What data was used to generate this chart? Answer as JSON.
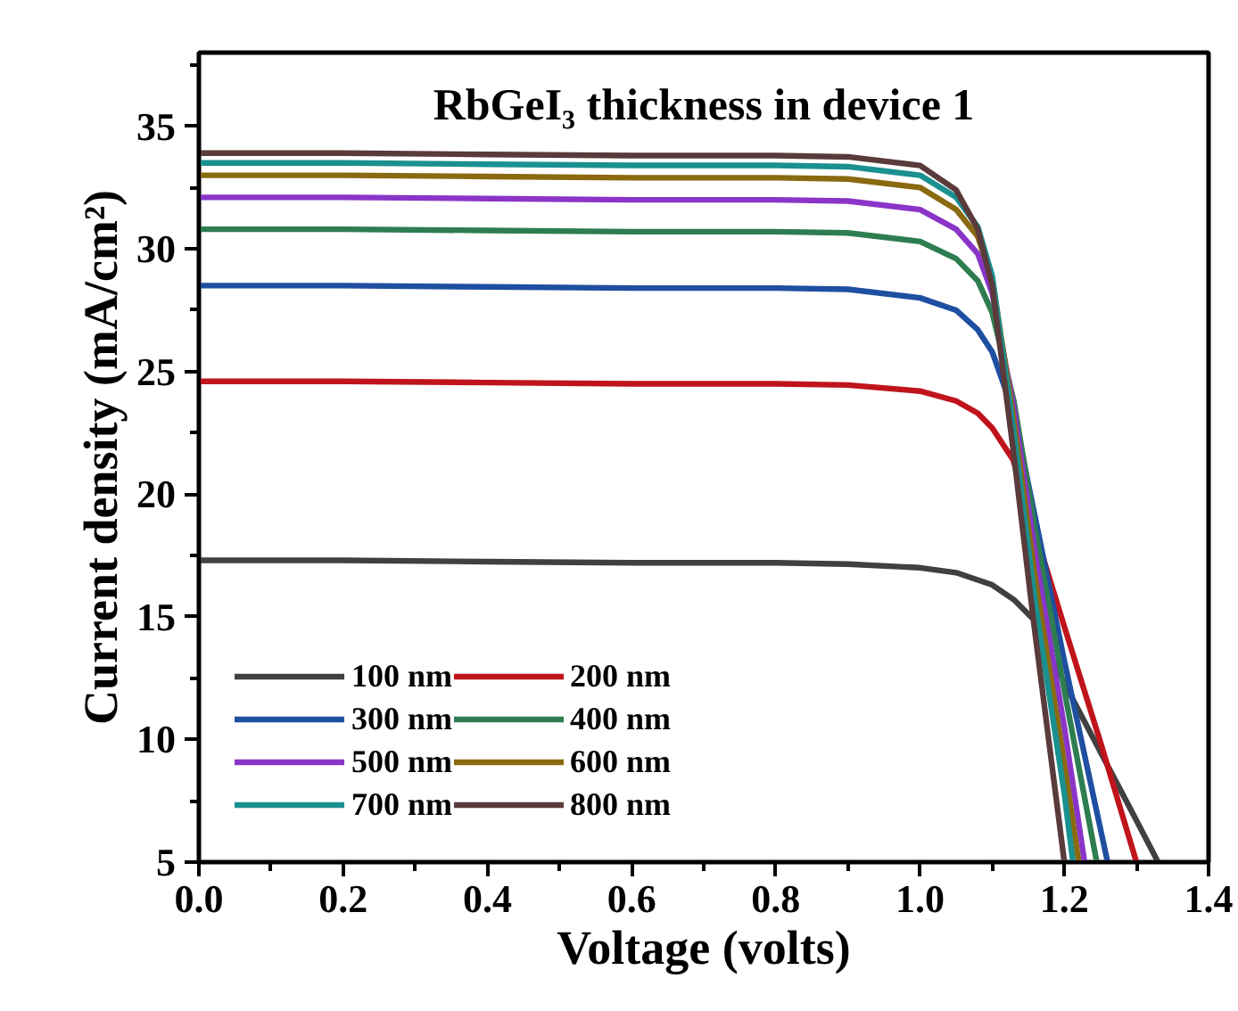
{
  "chart_data": {
    "type": "line",
    "title": "RbGeI₃ thickness in device 1",
    "xlabel": "Voltage (volts)",
    "ylabel": "Current density (mA/cm²)",
    "xlim": [
      0,
      1.4
    ],
    "ylim": [
      5,
      38
    ],
    "xticks": [
      {
        "value": 0,
        "label": "0.0"
      },
      {
        "value": 0.1,
        "label": null
      },
      {
        "value": 0.2,
        "label": "0.2"
      },
      {
        "value": 0.3,
        "label": null
      },
      {
        "value": 0.4,
        "label": "0.4"
      },
      {
        "value": 0.5,
        "label": null
      },
      {
        "value": 0.6,
        "label": "0.6"
      },
      {
        "value": 0.7,
        "label": null
      },
      {
        "value": 0.8,
        "label": "0.8"
      },
      {
        "value": 0.9,
        "label": null
      },
      {
        "value": 1,
        "label": "1.0"
      },
      {
        "value": 1.1,
        "label": null
      },
      {
        "value": 1.2,
        "label": "1.2"
      },
      {
        "value": 1.3,
        "label": null
      },
      {
        "value": 1.4,
        "label": "1.4"
      }
    ],
    "yticks": [
      5,
      {
        "value": 7.5,
        "label": null
      },
      10,
      {
        "value": 12.5,
        "label": null
      },
      15,
      {
        "value": 17.5,
        "label": null
      },
      20,
      {
        "value": 22.5,
        "label": null
      },
      25,
      {
        "value": 27.5,
        "label": null
      },
      30,
      {
        "value": 32.5,
        "label": null
      },
      35,
      {
        "value": 37.5,
        "label": null
      }
    ],
    "grid": false,
    "legend": "bottom left",
    "marker": "none",
    "line_style": "solid",
    "series": [
      {
        "name": "100 nm",
        "color": "#404040",
        "x": [
          0,
          0.2,
          0.4,
          0.6,
          0.8,
          0.9,
          1.0,
          1.05,
          1.1,
          1.13,
          1.157,
          1.2,
          1.25,
          1.3,
          1.33
        ],
        "values": [
          17.3,
          17.3,
          17.25,
          17.2,
          17.2,
          17.15,
          17.0,
          16.8,
          16.3,
          15.7,
          14.9,
          12.3,
          9.5,
          6.7,
          5
        ]
      },
      {
        "name": "200 nm",
        "color": "#c0141c",
        "x": [
          0,
          0.2,
          0.4,
          0.6,
          0.8,
          0.9,
          1.0,
          1.05,
          1.08,
          1.1,
          1.129,
          1.2,
          1.25,
          1.3
        ],
        "values": [
          24.6,
          24.6,
          24.55,
          24.5,
          24.5,
          24.45,
          24.2,
          23.8,
          23.3,
          22.7,
          21.4,
          14.6,
          9.9,
          5
        ]
      },
      {
        "name": "300 nm",
        "color": "#1f4fa0",
        "x": [
          0,
          0.2,
          0.4,
          0.6,
          0.8,
          0.9,
          1.0,
          1.05,
          1.08,
          1.1,
          1.13,
          1.16,
          1.2,
          1.26
        ],
        "values": [
          28.5,
          28.5,
          28.45,
          28.4,
          28.4,
          28.35,
          28.0,
          27.5,
          26.7,
          25.8,
          23.3,
          19.0,
          13.2,
          5
        ]
      },
      {
        "name": "400 nm",
        "color": "#2e7d50",
        "x": [
          0,
          0.2,
          0.4,
          0.6,
          0.8,
          0.9,
          1.0,
          1.05,
          1.08,
          1.1,
          1.13,
          1.16,
          1.2,
          1.245
        ],
        "values": [
          30.8,
          30.8,
          30.75,
          30.7,
          30.7,
          30.65,
          30.3,
          29.6,
          28.7,
          27.4,
          23.8,
          18.5,
          12.0,
          5
        ]
      },
      {
        "name": "500 nm",
        "color": "#8a35c8",
        "x": [
          0,
          0.2,
          0.4,
          0.6,
          0.8,
          0.9,
          1.0,
          1.05,
          1.08,
          1.1,
          1.13,
          1.16,
          1.2,
          1.228
        ],
        "values": [
          32.1,
          32.1,
          32.05,
          32.0,
          32.0,
          31.95,
          31.6,
          30.8,
          29.8,
          28.2,
          23.5,
          17.5,
          10.5,
          5
        ]
      },
      {
        "name": "600 nm",
        "color": "#8a6a10",
        "x": [
          0,
          0.2,
          0.4,
          0.6,
          0.8,
          0.9,
          1.0,
          1.05,
          1.08,
          1.1,
          1.13,
          1.16,
          1.2,
          1.22
        ],
        "values": [
          33.0,
          33.0,
          32.95,
          32.9,
          32.9,
          32.85,
          32.5,
          31.6,
          30.5,
          28.8,
          23.0,
          16.5,
          9.0,
          5
        ]
      },
      {
        "name": "700 nm",
        "color": "#1a9090",
        "x": [
          0,
          0.2,
          0.4,
          0.6,
          0.8,
          0.9,
          1.0,
          1.05,
          1.08,
          1.1,
          1.13,
          1.16,
          1.2,
          1.212
        ],
        "values": [
          33.5,
          33.5,
          33.45,
          33.4,
          33.4,
          33.35,
          33.0,
          32.1,
          30.9,
          28.9,
          22.5,
          15.5,
          7.8,
          5
        ]
      },
      {
        "name": "800 nm",
        "color": "#5a3a3a",
        "x": [
          0,
          0.2,
          0.4,
          0.6,
          0.8,
          0.9,
          1.0,
          1.05,
          1.08,
          1.1,
          1.13,
          1.157,
          1.2
        ],
        "values": [
          33.9,
          33.9,
          33.85,
          33.8,
          33.8,
          33.75,
          33.4,
          32.4,
          30.8,
          28.5,
          21.6,
          14.9,
          5
        ]
      }
    ]
  }
}
